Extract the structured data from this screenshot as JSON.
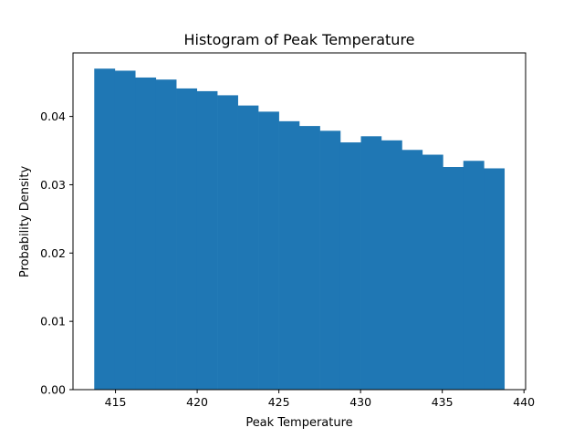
{
  "chart_data": {
    "type": "bar",
    "title": "Histogram of Peak Temperature",
    "xlabel": "Peak Temperature",
    "ylabel": "Probability Density",
    "xlim": [
      412.4,
      440.1
    ],
    "ylim": [
      0,
      0.0493
    ],
    "x_ticks": [
      415,
      420,
      425,
      430,
      435,
      440
    ],
    "y_ticks": [
      0.0,
      0.01,
      0.02,
      0.03,
      0.04
    ],
    "y_tick_labels": [
      "0.00",
      "0.01",
      "0.02",
      "0.03",
      "0.04"
    ],
    "bin_edges": [
      413.7,
      414.96,
      416.21,
      417.47,
      418.72,
      419.98,
      421.23,
      422.49,
      423.74,
      425.0,
      426.25,
      427.51,
      428.76,
      430.02,
      431.27,
      432.53,
      433.78,
      435.04,
      436.29,
      437.55,
      438.8
    ],
    "values": [
      0.047,
      0.0467,
      0.0457,
      0.0454,
      0.0441,
      0.0437,
      0.0431,
      0.0416,
      0.0407,
      0.0393,
      0.0386,
      0.0379,
      0.0362,
      0.0371,
      0.0365,
      0.0351,
      0.0344,
      0.0326,
      0.0335,
      0.0324
    ],
    "color": "#1f77b4",
    "grid": false
  }
}
